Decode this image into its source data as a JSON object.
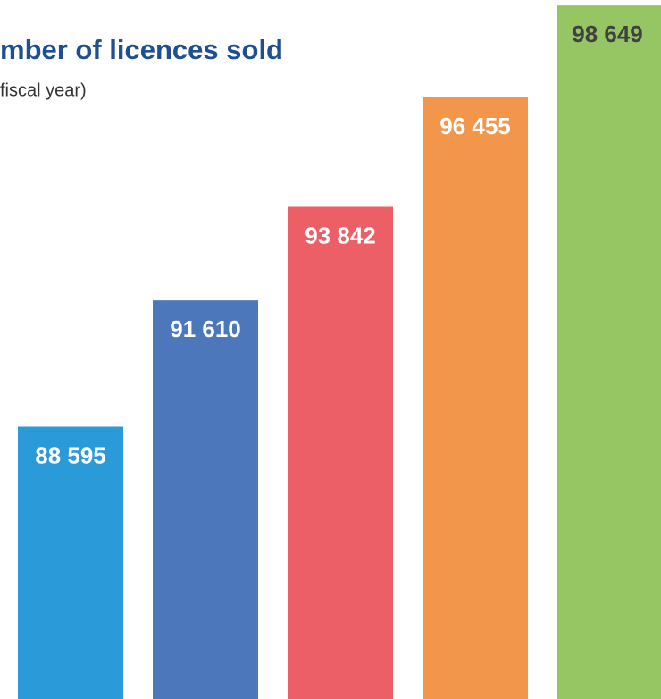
{
  "chart_data": {
    "type": "bar",
    "title": "mber of licences sold",
    "subtitle": "fiscal year)",
    "values": [
      88595,
      91610,
      93842,
      96455,
      98649
    ],
    "value_labels": [
      "88 595",
      "91 610",
      "93 842",
      "96 455",
      "98 649"
    ],
    "colors": [
      "#2a9ad8",
      "#4c78bb",
      "#ec5f67",
      "#f2964b",
      "#96c563"
    ],
    "ylim": [
      82100,
      98780
    ]
  }
}
